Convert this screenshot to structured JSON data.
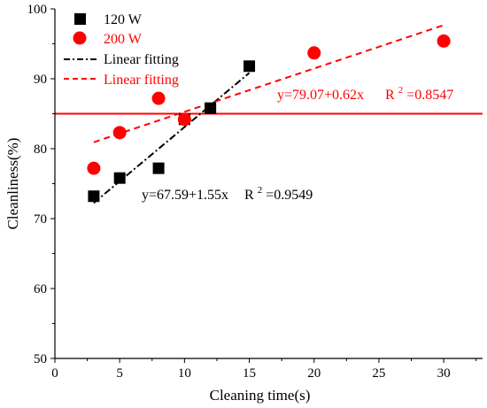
{
  "chart_data": {
    "type": "scatter",
    "xlabel": "Cleaning time(s)",
    "ylabel": "Cleanliness(%)",
    "xlim": [
      0,
      33
    ],
    "ylim": [
      50,
      100
    ],
    "x_ticks": [
      "0",
      "5",
      "10",
      "15",
      "20",
      "25",
      "30"
    ],
    "y_ticks": [
      "50",
      "60",
      "70",
      "80",
      "90",
      "100"
    ],
    "grid": false,
    "legend_position": "top-left",
    "series": [
      {
        "name": "120 W",
        "marker": "square",
        "color": "#000000",
        "x": [
          3,
          5,
          8,
          10,
          12,
          15
        ],
        "y": [
          73.2,
          75.8,
          77.2,
          84.2,
          85.8,
          91.8
        ]
      },
      {
        "name": "200 W",
        "marker": "circle",
        "color": "#ff0000",
        "x": [
          3,
          5,
          8,
          10,
          20,
          30
        ],
        "y": [
          77.2,
          82.3,
          87.2,
          84.2,
          93.7,
          95.4
        ]
      }
    ],
    "fits": [
      {
        "name": "Linear fitting",
        "style": "dash-dot",
        "color": "#000000",
        "intercept": 67.59,
        "slope": 1.55,
        "x_range": [
          3,
          15
        ],
        "equation": "y=67.59+1.55x",
        "r2_label": "R",
        "r2_value": "=0.9549"
      },
      {
        "name": "Linear fitting",
        "style": "dashed",
        "color": "#ff0000",
        "intercept": 79.07,
        "slope": 0.62,
        "x_range": [
          3,
          30
        ],
        "equation": "y=79.07+0.62x",
        "r2_label": "R",
        "r2_value": "=0.8547"
      }
    ],
    "reference_line": {
      "y": 85,
      "color": "#ff0000"
    }
  }
}
